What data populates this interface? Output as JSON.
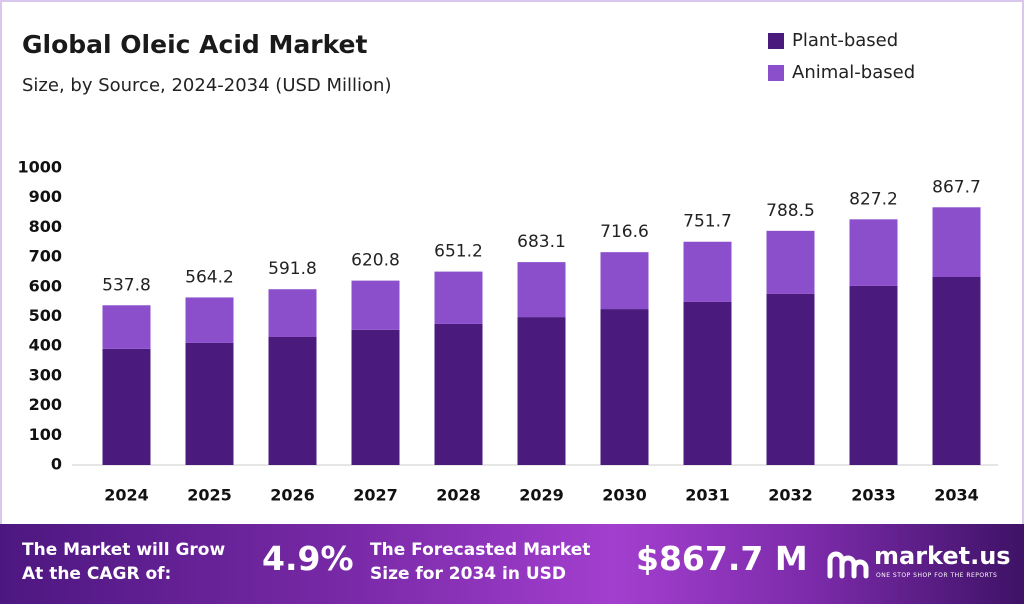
{
  "chart_data": {
    "type": "stacked_bar",
    "title": "Global Oleic Acid Market",
    "subtitle": "Size, by Source, 2024-2034 (USD Million)",
    "categories": [
      "2024",
      "2025",
      "2026",
      "2027",
      "2028",
      "2029",
      "2030",
      "2031",
      "2032",
      "2033",
      "2034"
    ],
    "series": [
      {
        "name": "Plant-based",
        "color": "#4a1a7c",
        "values": [
          391,
          411,
          431,
          455,
          475,
          498,
          525,
          549,
          576,
          603,
          633
        ]
      },
      {
        "name": "Animal-based",
        "color": "#8b4fcb",
        "values": [
          146.8,
          153.2,
          160.8,
          165.8,
          176.2,
          185.1,
          191.6,
          202.7,
          212.5,
          224.2,
          234.7
        ]
      }
    ],
    "totals": [
      537.8,
      564.2,
      591.8,
      620.8,
      651.2,
      683.1,
      716.6,
      751.7,
      788.5,
      827.2,
      867.7
    ],
    "ylim": [
      0,
      1000
    ],
    "yticks": [
      0,
      100,
      200,
      300,
      400,
      500,
      600,
      700,
      800,
      900,
      1000
    ],
    "grid": false,
    "legend": "top-right"
  },
  "footer": {
    "cagr_label": [
      "The Market will Grow",
      "At the CAGR of:"
    ],
    "cagr_value": "4.9%",
    "forecast_label": [
      "The Forecasted Market",
      "Size for 2034 in USD"
    ],
    "forecast_value": "$867.7 M",
    "brand": "market.us",
    "tagline": "ONE STOP SHOP FOR THE REPORTS"
  }
}
